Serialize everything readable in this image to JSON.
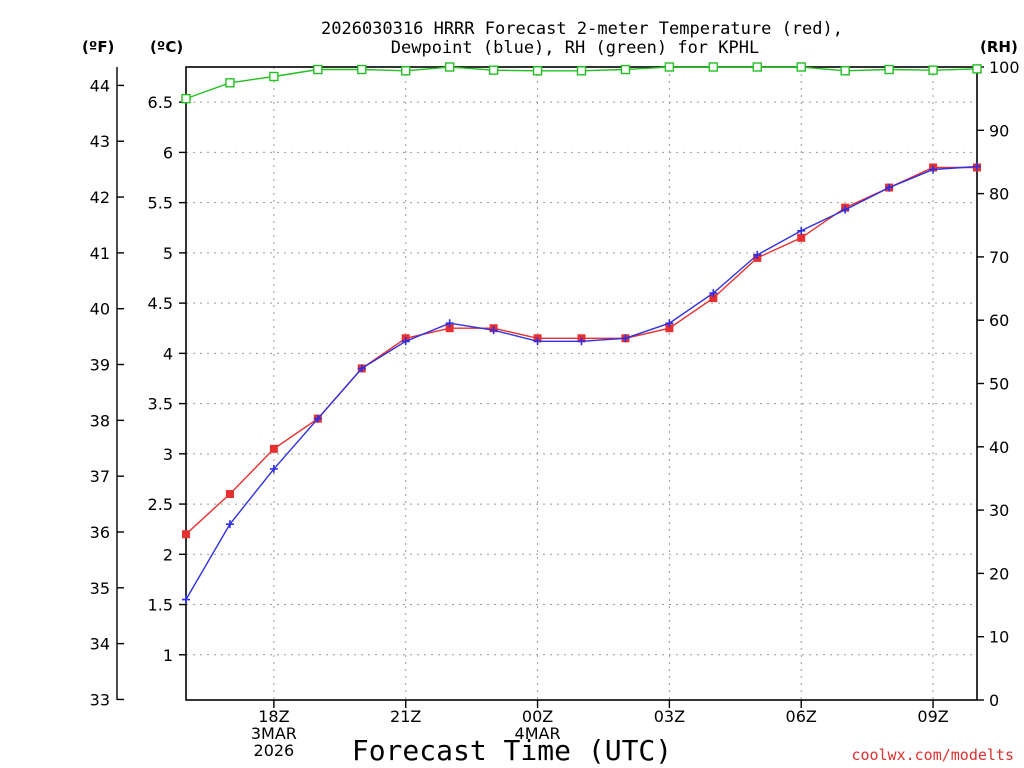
{
  "chart_data": {
    "type": "line",
    "title_line1": "2026030316 HRRR Forecast 2-meter Temperature (red),",
    "title_line2": "Dewpoint (blue), RH (green) for KPHL",
    "units": {
      "fahrenheit": "(ºF)",
      "celsius": "(ºC)",
      "rh": "(RH)"
    },
    "xlabel": "Forecast Time (UTC)",
    "credit": "coolwx.com/modelts",
    "x_hours": [
      16,
      17,
      18,
      19,
      20,
      21,
      22,
      23,
      24,
      25,
      26,
      27,
      28,
      29,
      30,
      31,
      32,
      33,
      34
    ],
    "x_range": [
      16,
      34
    ],
    "x_ticks": [
      {
        "hour": 18,
        "lines": [
          "18Z",
          "3MAR",
          "2026"
        ]
      },
      {
        "hour": 21,
        "lines": [
          "21Z"
        ]
      },
      {
        "hour": 24,
        "lines": [
          "00Z",
          "4MAR"
        ]
      },
      {
        "hour": 27,
        "lines": [
          "03Z"
        ]
      },
      {
        "hour": 30,
        "lines": [
          "06Z"
        ]
      },
      {
        "hour": 33,
        "lines": [
          "09Z"
        ]
      }
    ],
    "ylim_c": [
      0.55,
      6.85
    ],
    "yticks_c": [
      1,
      1.5,
      2,
      2.5,
      3,
      3.5,
      4,
      4.5,
      5,
      5.5,
      6,
      6.5
    ],
    "yticks_c_labels": [
      "1",
      "1.5",
      "2",
      "2.5",
      "3",
      "3.5",
      "4",
      "4.5",
      "5",
      "5.5",
      "6",
      "6.5"
    ],
    "yticks_f": [
      33,
      34,
      35,
      36,
      37,
      38,
      39,
      40,
      41,
      42,
      43,
      44
    ],
    "yticks_f_labels": [
      "33",
      "34",
      "35",
      "36",
      "37",
      "38",
      "39",
      "40",
      "41",
      "42",
      "43",
      "44"
    ],
    "ylim_rh": [
      0,
      100
    ],
    "yticks_rh": [
      0,
      10,
      20,
      30,
      40,
      50,
      60,
      70,
      80,
      90,
      100
    ],
    "yticks_rh_labels": [
      "0",
      "10",
      "20",
      "30",
      "40",
      "50",
      "60",
      "70",
      "80",
      "90",
      "100"
    ],
    "series": [
      {
        "name": "Temperature",
        "unit": "C",
        "color": "#e83030",
        "marker": "square",
        "values": [
          2.2,
          2.6,
          3.05,
          3.35,
          3.85,
          4.15,
          4.25,
          4.25,
          4.15,
          4.15,
          4.15,
          4.25,
          4.55,
          4.95,
          5.15,
          5.45,
          5.65,
          5.85,
          5.85
        ]
      },
      {
        "name": "Dewpoint",
        "unit": "C",
        "color": "#3030e0",
        "marker": "plus",
        "values": [
          1.55,
          2.3,
          2.85,
          3.35,
          3.85,
          4.12,
          4.3,
          4.23,
          4.12,
          4.12,
          4.15,
          4.3,
          4.6,
          4.98,
          5.22,
          5.43,
          5.65,
          5.83,
          5.86
        ]
      },
      {
        "name": "RH",
        "unit": "%",
        "color": "#22c022",
        "marker": "open-square",
        "values": [
          95,
          97.5,
          98.5,
          99.6,
          99.6,
          99.4,
          100,
          99.5,
          99.4,
          99.4,
          99.6,
          100,
          100,
          100,
          100,
          99.4,
          99.6,
          99.5,
          99.7
        ]
      }
    ]
  }
}
